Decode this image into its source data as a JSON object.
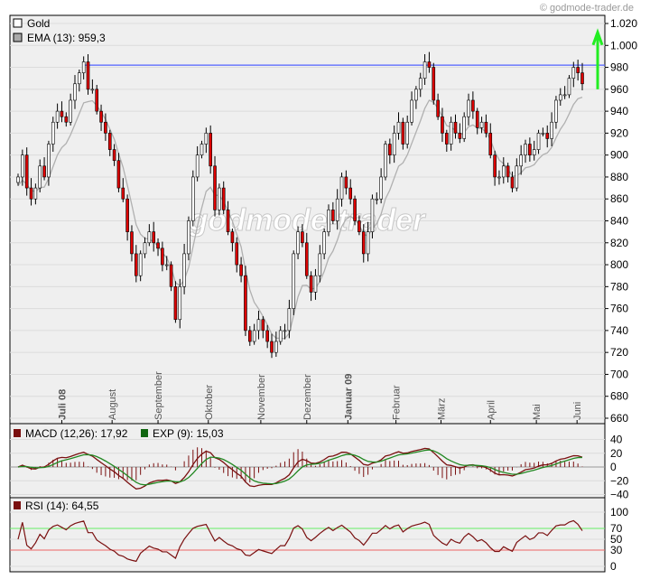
{
  "copyright": "© godmode-trader.de",
  "watermark": "godmode-trader",
  "legend": {
    "gold": "Gold",
    "ema": "EMA (13): 959,3"
  },
  "macd_legend": {
    "macd": "MACD (12,26): 17,92",
    "signal": "EXP (9): 15,03"
  },
  "rsi_legend": "RSI (14): 64,55",
  "colors": {
    "up": "#ffffff",
    "down": "#dd0000",
    "ema": "#b0b0b0",
    "resistance": "#5060ff",
    "arrow": "#22ee22",
    "macd": "#7a1010",
    "signal": "#228822",
    "rsi": "#7a1010",
    "rsi_high": "#66ee66",
    "rsi_low": "#ee6666"
  },
  "chart_data": {
    "type": "candlestick",
    "title": "Gold",
    "ylim": [
      660,
      1020
    ],
    "y_ticks": [
      {
        "v": 1020,
        "label": "1.020"
      },
      {
        "v": 1000,
        "label": "1.000"
      },
      {
        "v": 980,
        "label": "980"
      },
      {
        "v": 960,
        "label": "960"
      },
      {
        "v": 940,
        "label": "940"
      },
      {
        "v": 920,
        "label": "920"
      },
      {
        "v": 900,
        "label": "900"
      },
      {
        "v": 880,
        "label": "880"
      },
      {
        "v": 860,
        "label": "860"
      },
      {
        "v": 840,
        "label": "840"
      },
      {
        "v": 820,
        "label": "820"
      },
      {
        "v": 800,
        "label": "800"
      },
      {
        "v": 780,
        "label": "780"
      },
      {
        "v": 760,
        "label": "760"
      },
      {
        "v": 740,
        "label": "740"
      },
      {
        "v": 720,
        "label": "720"
      },
      {
        "v": 700,
        "label": "700"
      },
      {
        "v": 680,
        "label": "680"
      },
      {
        "v": 660,
        "label": "660"
      }
    ],
    "months": [
      {
        "label": "Juli 08",
        "bar": 10,
        "bold": true
      },
      {
        "label": "August",
        "bar": 21.5
      },
      {
        "label": "September",
        "bar": 32
      },
      {
        "label": "Oktober",
        "bar": 43.5
      },
      {
        "label": "November",
        "bar": 55.5
      },
      {
        "label": "Dezember",
        "bar": 66
      },
      {
        "label": "Januar 09",
        "bar": 75.4,
        "bold": true
      },
      {
        "label": "Februar",
        "bar": 86.4
      },
      {
        "label": "März",
        "bar": 96.7
      },
      {
        "label": "April",
        "bar": 108
      },
      {
        "label": "Mai",
        "bar": 118.5
      },
      {
        "label": "Juni",
        "bar": 127.8
      }
    ],
    "closes": [
      880,
      900,
      870,
      860,
      870,
      890,
      880,
      910,
      930,
      940,
      935,
      930,
      950,
      965,
      975,
      985,
      960,
      960,
      940,
      930,
      920,
      905,
      895,
      870,
      860,
      830,
      810,
      790,
      810,
      820,
      830,
      820,
      815,
      800,
      800,
      780,
      750,
      780,
      810,
      840,
      880,
      900,
      910,
      920,
      890,
      850,
      870,
      850,
      830,
      820,
      800,
      790,
      740,
      730,
      740,
      750,
      740,
      730,
      720,
      730,
      740,
      740,
      760,
      810,
      830,
      820,
      790,
      775,
      790,
      810,
      830,
      850,
      840,
      860,
      880,
      870,
      860,
      840,
      830,
      810,
      830,
      860,
      860,
      880,
      910,
      900,
      920,
      930,
      910,
      930,
      950,
      960,
      970,
      985,
      980,
      950,
      935,
      920,
      910,
      930,
      920,
      915,
      935,
      950,
      940,
      925,
      930,
      920,
      900,
      880,
      880,
      890,
      880,
      870,
      890,
      900,
      910,
      900,
      905,
      920,
      920,
      915,
      930,
      950,
      955,
      955,
      970,
      980,
      975,
      965
    ],
    "resistance_level": 982,
    "target_arrow": [
      960,
      1012
    ],
    "macd": {
      "ylim": [
        -50,
        50
      ],
      "ticks": [
        {
          "v": 40,
          "label": "40"
        },
        {
          "v": 20,
          "label": "20"
        },
        {
          "v": 0,
          "label": "0"
        },
        {
          "v": -20,
          "label": "−20"
        },
        {
          "v": -40,
          "label": "−40"
        }
      ]
    },
    "rsi": {
      "ylim": [
        -5,
        110
      ],
      "ticks": [
        {
          "v": 100,
          "label": "100"
        },
        {
          "v": 70,
          "label": "70",
          "color": "#66ee66"
        },
        {
          "v": 50,
          "label": "50"
        },
        {
          "v": 30,
          "label": "30",
          "color": "#ee6666"
        },
        {
          "v": 0,
          "label": "0"
        }
      ],
      "upper": 70,
      "lower": 30
    }
  }
}
